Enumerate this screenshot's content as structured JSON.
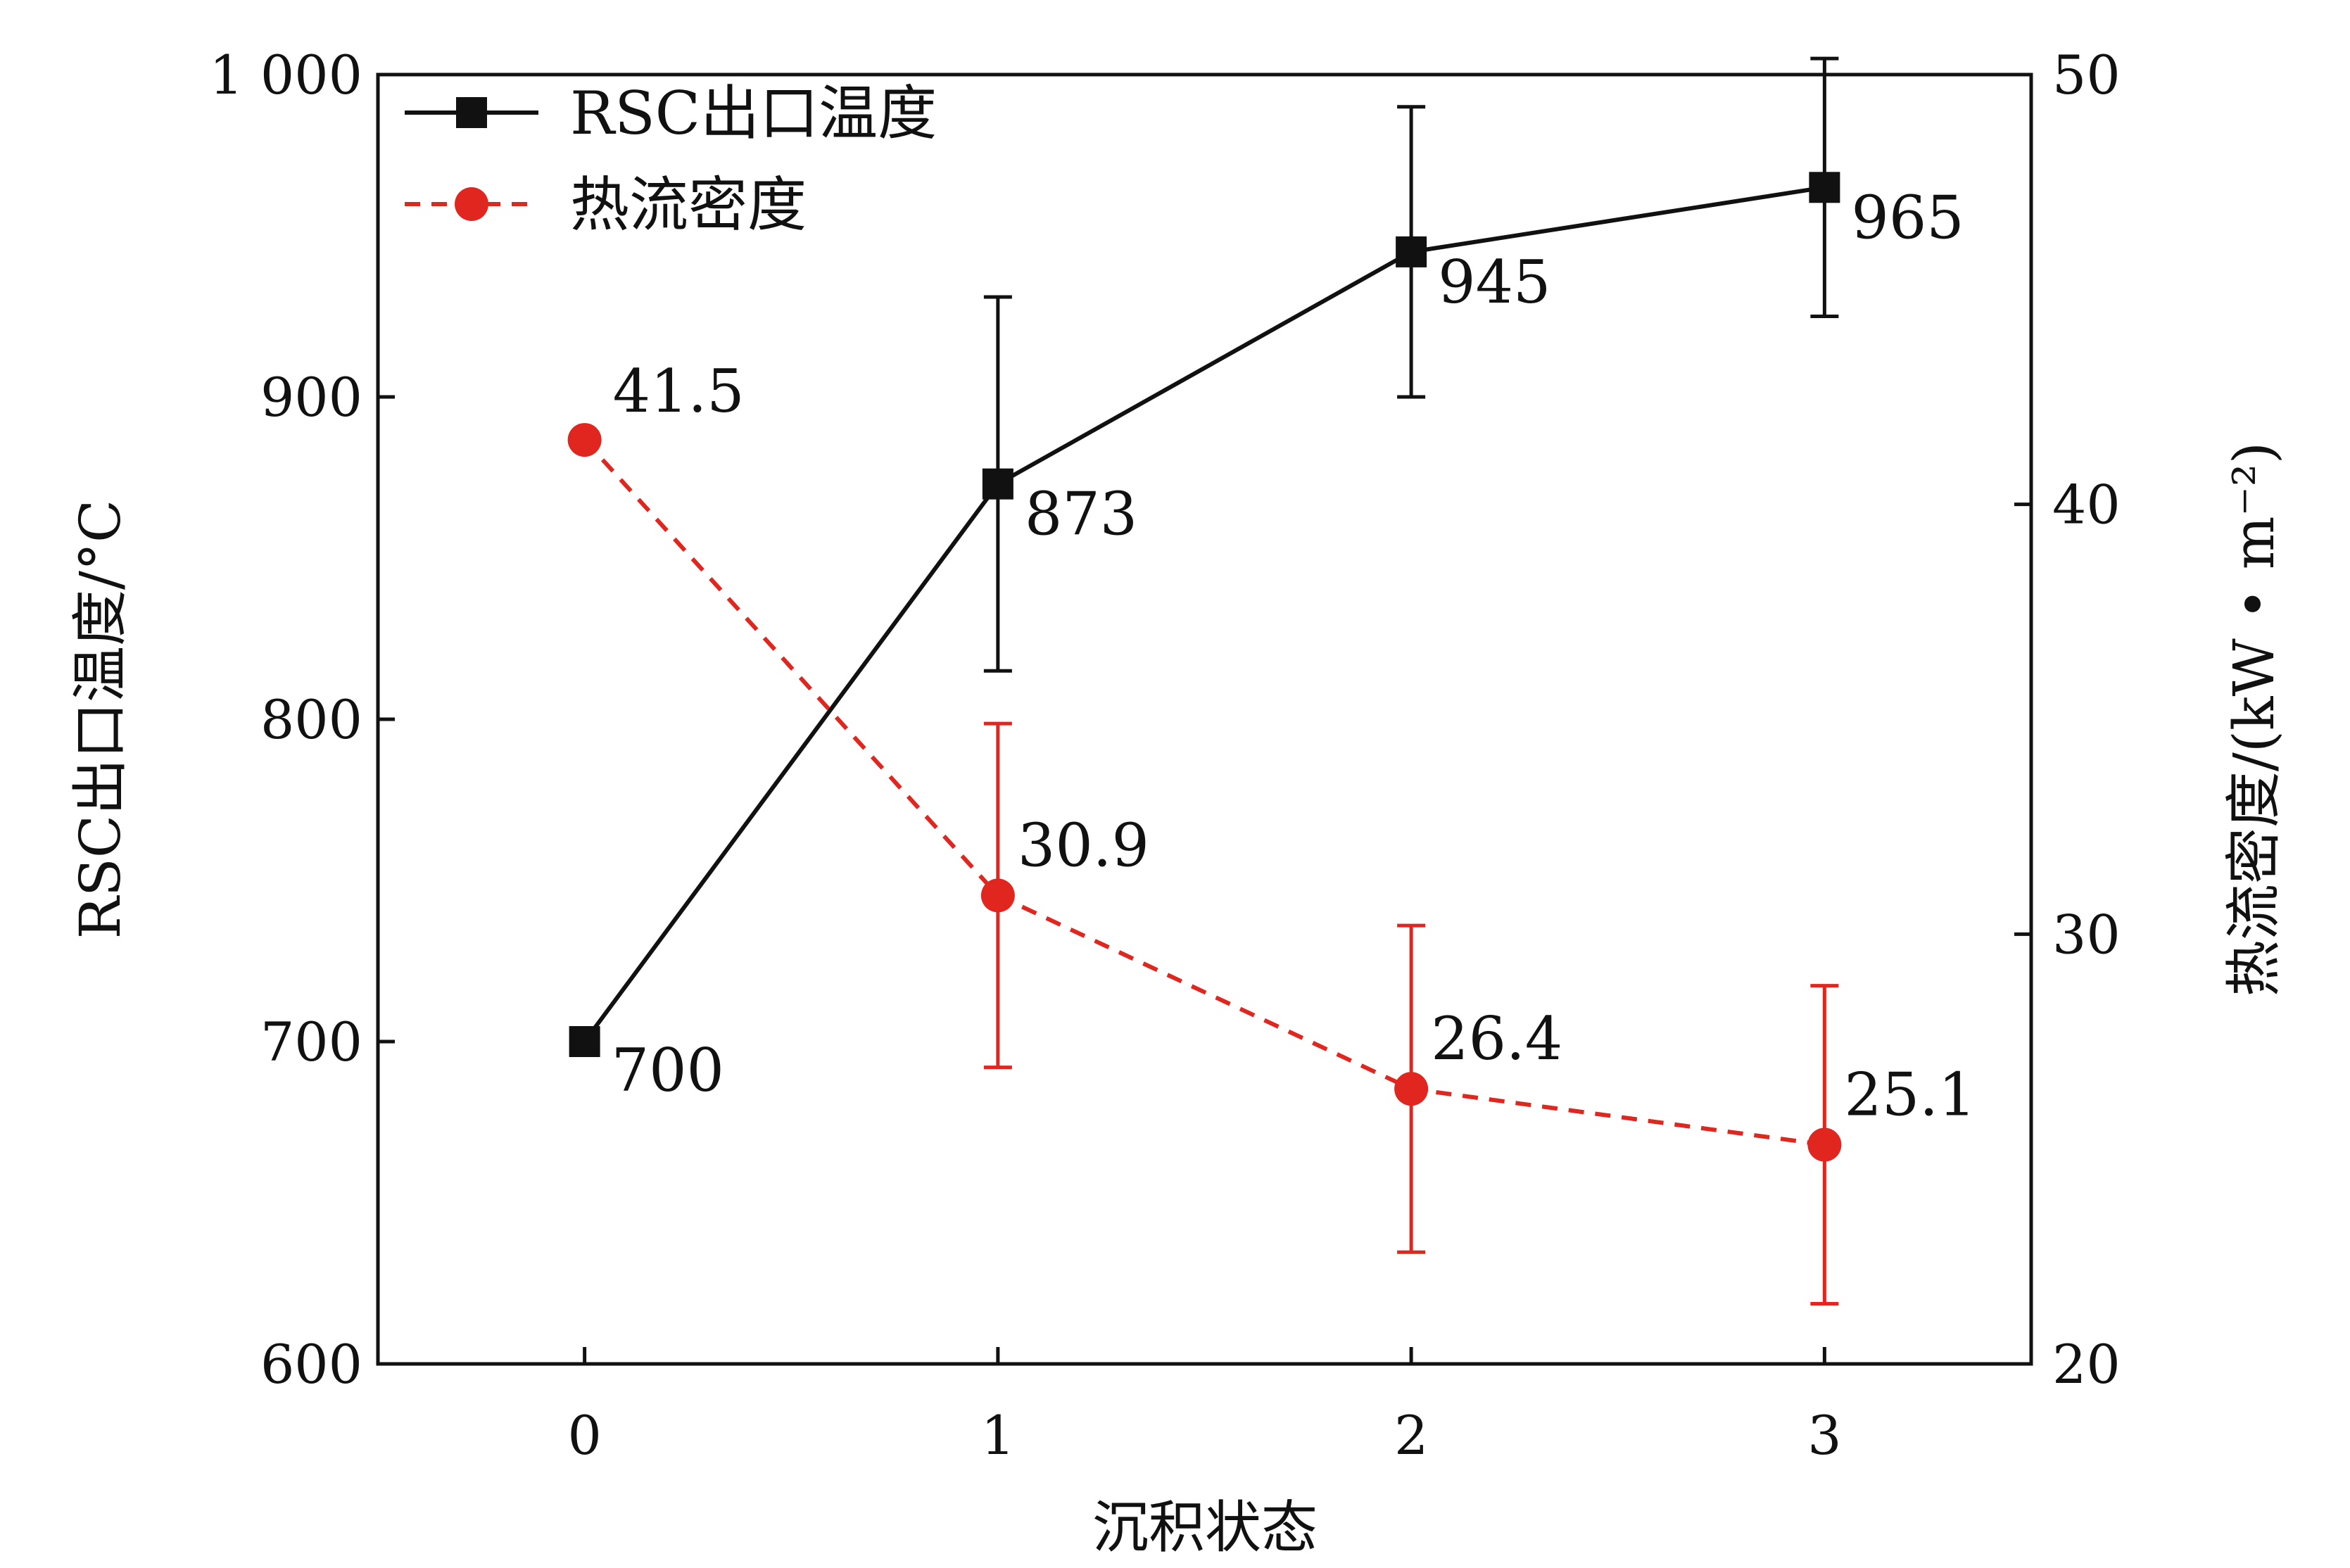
{
  "chart_data": {
    "type": "line",
    "x": [
      0,
      1,
      2,
      3
    ],
    "x_ticks": [
      "0",
      "1",
      "2",
      "3"
    ],
    "xlabel": "沉积状态",
    "xlim": [
      -0.5,
      3.5
    ],
    "y_left": {
      "label": "RSC出口温度/°C",
      "lim": [
        600,
        1000
      ],
      "ticks": [
        600,
        700,
        800,
        900,
        1000
      ],
      "tick_labels": [
        "600",
        "700",
        "800",
        "900",
        "1 000"
      ]
    },
    "y_right": {
      "label": "热流密度/(kW • m⁻²)",
      "lim": [
        20,
        50
      ],
      "ticks": [
        20,
        30,
        40,
        50
      ],
      "tick_labels": [
        "20",
        "30",
        "40",
        "50"
      ]
    },
    "series": [
      {
        "name": "RSC出口温度",
        "axis": "left",
        "color": "#111111",
        "line_style": "solid",
        "marker": "square",
        "values": [
          700,
          873,
          945,
          965
        ],
        "error": [
          0,
          58,
          45,
          40
        ],
        "data_labels": [
          "700",
          "873",
          "945",
          "965"
        ]
      },
      {
        "name": "热流密度",
        "axis": "right",
        "color": "#e0261f",
        "line_style": "dashed",
        "marker": "circle",
        "values": [
          41.5,
          30.9,
          26.4,
          25.1
        ],
        "error": [
          0,
          4,
          3.8,
          3.7
        ],
        "data_labels": [
          "41.5",
          "30.9",
          "26.4",
          "25.1"
        ]
      }
    ],
    "legend_position": "top-left",
    "grid": false
  }
}
